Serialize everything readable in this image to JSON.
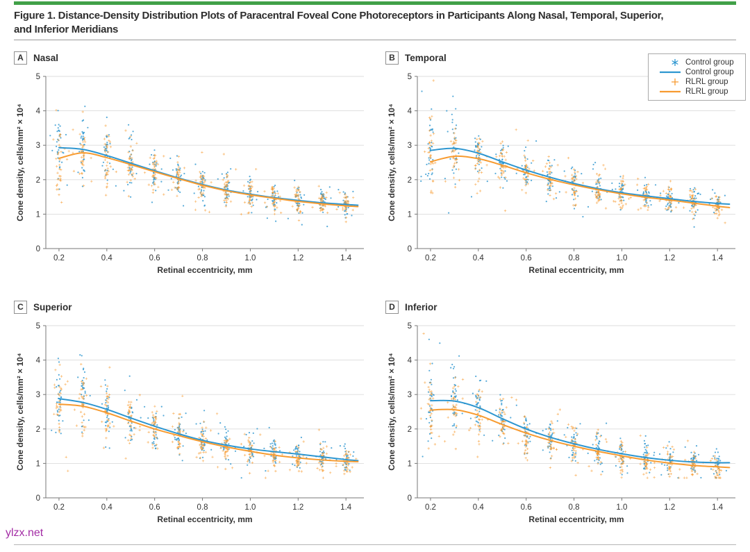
{
  "page": {
    "title_line1": "Figure 1. Distance-Density Distribution Plots of Paracentral Foveal Cone Photoreceptors in Participants Along Nasal, Temporal, Superior,",
    "title_line2": "and Inferior Meridians",
    "watermark": "ylzx.net",
    "colors": {
      "accent_green": "#41A048",
      "control_blue": "#2D96D0",
      "rlrl_orange": "#F79B30",
      "grid_line": "#DCDCDC",
      "axis_line": "#777777",
      "tick_text": "#333333",
      "title_text": "#2E2E2E",
      "watermark_purple": "#A32CA5"
    }
  },
  "legend": {
    "entries": [
      {
        "marker": "asterisk",
        "color": "#2D96D0",
        "label": "Control group"
      },
      {
        "marker": "line",
        "color": "#2D96D0",
        "label": "Control group"
      },
      {
        "marker": "plus",
        "color": "#F79B30",
        "label": "RLRL group"
      },
      {
        "marker": "line",
        "color": "#F79B30",
        "label": "RLRL group"
      }
    ]
  },
  "chart_data": [
    {
      "type": "scatter",
      "panel_letter": "A",
      "title": "Nasal",
      "xlabel": "Retinal eccentricity, mm",
      "ylabel": "Cone density, cells/mm² × 10⁴",
      "xlim": [
        0.145,
        1.475
      ],
      "ylim": [
        0,
        5
      ],
      "xticks": [
        "0.2",
        "0.4",
        "0.6",
        "0.8",
        "1.0",
        "1.2",
        "1.4"
      ],
      "yticks": [
        "0",
        "1",
        "2",
        "3",
        "4",
        "5"
      ],
      "x_samples": [
        0.2,
        0.3,
        0.4,
        0.5,
        0.6,
        0.7,
        0.8,
        0.9,
        1.0,
        1.1,
        1.2,
        1.3,
        1.4,
        1.45
      ],
      "series": [
        {
          "name": "Control group",
          "color": "#2D96D0",
          "values": [
            2.93,
            2.88,
            2.7,
            2.48,
            2.26,
            2.05,
            1.86,
            1.7,
            1.58,
            1.48,
            1.4,
            1.33,
            1.28,
            1.26
          ]
        },
        {
          "name": "RLRL group",
          "color": "#F79B30",
          "values": [
            2.62,
            2.78,
            2.64,
            2.44,
            2.23,
            2.03,
            1.84,
            1.68,
            1.56,
            1.46,
            1.37,
            1.3,
            1.24,
            1.22
          ]
        }
      ],
      "scatter": {
        "cluster_x": [
          0.2,
          0.3,
          0.4,
          0.5,
          0.6,
          0.7,
          0.8,
          0.9,
          1.0,
          1.1,
          1.2,
          1.3,
          1.4
        ],
        "cluster_sd": [
          0.55,
          0.48,
          0.42,
          0.36,
          0.31,
          0.28,
          0.26,
          0.24,
          0.22,
          0.21,
          0.2,
          0.19,
          0.18
        ],
        "points_per_cluster": 26,
        "loose_points_per_cluster": 7
      }
    },
    {
      "type": "scatter",
      "panel_letter": "B",
      "title": "Temporal",
      "xlabel": "Retinal eccentricity, mm",
      "ylabel": "Cone density, cells/mm² × 10⁴",
      "xlim": [
        0.145,
        1.475
      ],
      "ylim": [
        0,
        5
      ],
      "xticks": [
        "0.2",
        "0.4",
        "0.6",
        "0.8",
        "1.0",
        "1.2",
        "1.4"
      ],
      "yticks": [
        "0",
        "1",
        "2",
        "3",
        "4",
        "5"
      ],
      "x_samples": [
        0.2,
        0.3,
        0.4,
        0.5,
        0.6,
        0.7,
        0.8,
        0.9,
        1.0,
        1.1,
        1.2,
        1.3,
        1.4,
        1.45
      ],
      "series": [
        {
          "name": "Control group",
          "color": "#2D96D0",
          "values": [
            2.85,
            2.91,
            2.77,
            2.52,
            2.28,
            2.07,
            1.89,
            1.74,
            1.62,
            1.53,
            1.45,
            1.37,
            1.31,
            1.29
          ]
        },
        {
          "name": "RLRL group",
          "color": "#F79B30",
          "values": [
            2.52,
            2.68,
            2.61,
            2.42,
            2.2,
            2.01,
            1.85,
            1.71,
            1.59,
            1.49,
            1.41,
            1.32,
            1.23,
            1.19
          ]
        }
      ],
      "scatter": {
        "cluster_x": [
          0.2,
          0.3,
          0.4,
          0.5,
          0.6,
          0.7,
          0.8,
          0.9,
          1.0,
          1.1,
          1.2,
          1.3,
          1.4
        ],
        "cluster_sd": [
          0.55,
          0.48,
          0.42,
          0.36,
          0.31,
          0.28,
          0.26,
          0.24,
          0.22,
          0.21,
          0.2,
          0.19,
          0.18
        ],
        "points_per_cluster": 26,
        "loose_points_per_cluster": 7
      }
    },
    {
      "type": "scatter",
      "panel_letter": "C",
      "title": "Superior",
      "xlabel": "Retinal eccentricity, mm",
      "ylabel": "Cone density, cells/mm² × 10⁴",
      "xlim": [
        0.145,
        1.475
      ],
      "ylim": [
        0,
        5
      ],
      "xticks": [
        "0.2",
        "0.4",
        "0.6",
        "0.8",
        "1.0",
        "1.2",
        "1.4"
      ],
      "yticks": [
        "0",
        "1",
        "2",
        "3",
        "4",
        "5"
      ],
      "x_samples": [
        0.2,
        0.3,
        0.4,
        0.5,
        0.6,
        0.7,
        0.8,
        0.9,
        1.0,
        1.1,
        1.2,
        1.3,
        1.4,
        1.45
      ],
      "series": [
        {
          "name": "Control group",
          "color": "#2D96D0",
          "values": [
            2.88,
            2.77,
            2.57,
            2.32,
            2.08,
            1.86,
            1.67,
            1.53,
            1.42,
            1.34,
            1.27,
            1.19,
            1.11,
            1.08
          ]
        },
        {
          "name": "RLRL group",
          "color": "#F79B30",
          "values": [
            2.72,
            2.66,
            2.47,
            2.23,
            2.0,
            1.81,
            1.63,
            1.48,
            1.35,
            1.24,
            1.16,
            1.1,
            1.06,
            1.05
          ]
        }
      ],
      "scatter": {
        "cluster_x": [
          0.2,
          0.3,
          0.4,
          0.5,
          0.6,
          0.7,
          0.8,
          0.9,
          1.0,
          1.1,
          1.2,
          1.3,
          1.4
        ],
        "cluster_sd": [
          0.55,
          0.48,
          0.42,
          0.36,
          0.31,
          0.28,
          0.26,
          0.24,
          0.22,
          0.21,
          0.2,
          0.19,
          0.18
        ],
        "points_per_cluster": 26,
        "loose_points_per_cluster": 7
      }
    },
    {
      "type": "scatter",
      "panel_letter": "D",
      "title": "Inferior",
      "xlabel": "Retinal eccentricity, mm",
      "ylabel": "Cone density, cells/mm² × 10⁴",
      "xlim": [
        0.145,
        1.475
      ],
      "ylim": [
        0,
        5
      ],
      "xticks": [
        "0.2",
        "0.4",
        "0.6",
        "0.8",
        "1.0",
        "1.2",
        "1.4"
      ],
      "yticks": [
        "0",
        "1",
        "2",
        "3",
        "4",
        "5"
      ],
      "x_samples": [
        0.2,
        0.3,
        0.4,
        0.5,
        0.6,
        0.7,
        0.8,
        0.9,
        1.0,
        1.1,
        1.2,
        1.3,
        1.4,
        1.45
      ],
      "series": [
        {
          "name": "Control group",
          "color": "#2D96D0",
          "values": [
            2.82,
            2.81,
            2.62,
            2.3,
            2.0,
            1.76,
            1.57,
            1.41,
            1.28,
            1.17,
            1.09,
            1.04,
            1.02,
            1.02
          ]
        },
        {
          "name": "RLRL group",
          "color": "#F79B30",
          "values": [
            2.55,
            2.56,
            2.4,
            2.13,
            1.88,
            1.67,
            1.5,
            1.35,
            1.22,
            1.1,
            1.01,
            0.94,
            0.9,
            0.88
          ]
        }
      ],
      "scatter": {
        "cluster_x": [
          0.2,
          0.3,
          0.4,
          0.5,
          0.6,
          0.7,
          0.8,
          0.9,
          1.0,
          1.1,
          1.2,
          1.3,
          1.4
        ],
        "cluster_sd": [
          0.55,
          0.48,
          0.42,
          0.36,
          0.31,
          0.28,
          0.26,
          0.24,
          0.22,
          0.21,
          0.2,
          0.19,
          0.18
        ],
        "points_per_cluster": 26,
        "loose_points_per_cluster": 7
      }
    }
  ]
}
